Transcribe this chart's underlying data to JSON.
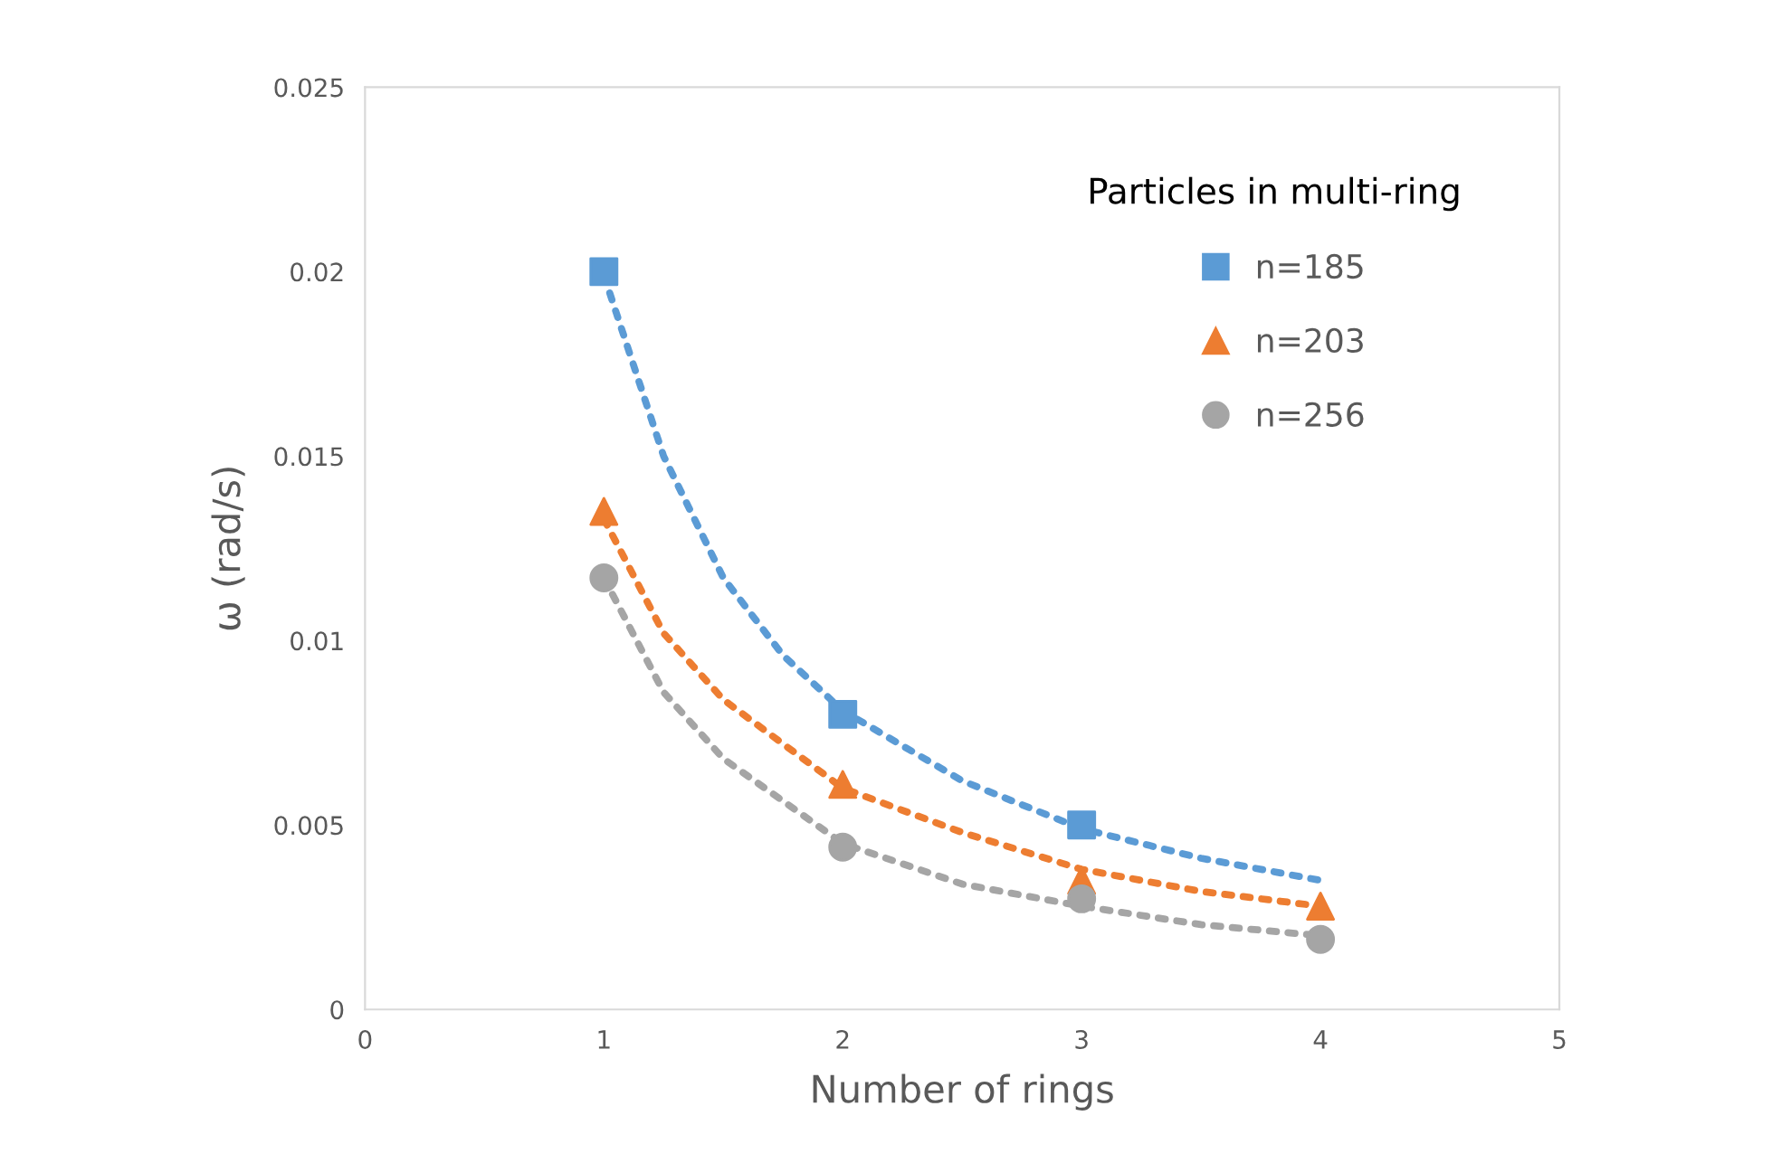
{
  "chart_data": {
    "type": "scatter",
    "xlabel": "Number of rings",
    "ylabel": "ω (rad/s)",
    "legend_title": "Particles in multi-ring",
    "legend": "top right",
    "grid": false,
    "x": [
      1,
      2,
      3,
      4
    ],
    "xlim": [
      0,
      5
    ],
    "xticks": [
      0,
      1,
      2,
      3,
      4,
      5
    ],
    "ylim": [
      0,
      0.025
    ],
    "yticks": [
      0,
      0.005,
      0.01,
      0.015,
      0.02,
      0.025
    ],
    "series": [
      {
        "name": "n=185",
        "color": "#5b9bd5",
        "marker": "square",
        "values": [
          0.02,
          0.008,
          0.005,
          null
        ]
      },
      {
        "name": "n=203",
        "color": "#ed7d31",
        "marker": "triangle",
        "values": [
          0.0135,
          0.0061,
          0.0035,
          0.0028
        ]
      },
      {
        "name": "n=256",
        "color": "#a5a5a5",
        "marker": "circle",
        "values": [
          0.0117,
          0.0044,
          0.003,
          0.0019
        ]
      },
      {
        "type": "line",
        "color": "#5b9bd5",
        "line_style": "dotted",
        "marker": "none",
        "x": [
          1,
          1.25,
          1.5,
          1.75,
          2,
          2.5,
          3,
          3.5,
          4
        ],
        "values": [
          0.0199,
          0.015,
          0.0117,
          0.0096,
          0.0081,
          0.0062,
          0.0049,
          0.0041,
          0.0035
        ]
      },
      {
        "type": "line",
        "color": "#ed7d31",
        "line_style": "dotted",
        "marker": "none",
        "x": [
          1,
          1.25,
          1.5,
          2,
          2.5,
          3,
          3.5,
          4
        ],
        "values": [
          0.0133,
          0.0102,
          0.0084,
          0.006,
          0.0048,
          0.0038,
          0.0032,
          0.0028
        ]
      },
      {
        "type": "line",
        "color": "#a5a5a5",
        "line_style": "dotted",
        "marker": "none",
        "x": [
          1,
          1.25,
          1.5,
          2,
          2.5,
          3,
          3.5,
          4
        ],
        "values": [
          0.0117,
          0.0086,
          0.0068,
          0.0045,
          0.0034,
          0.0028,
          0.0023,
          0.002
        ]
      }
    ]
  }
}
